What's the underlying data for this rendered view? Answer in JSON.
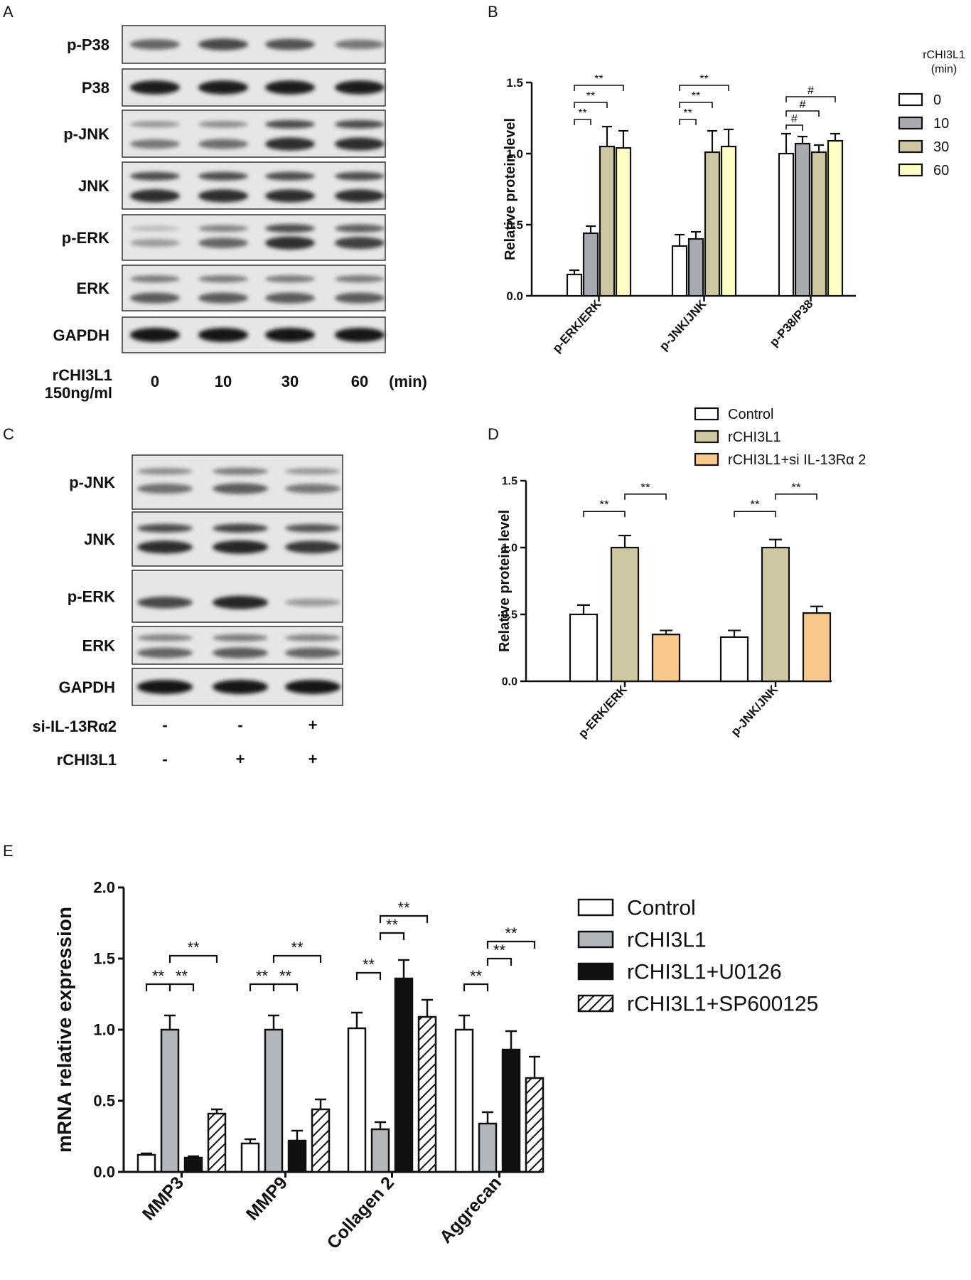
{
  "panels": {
    "a": "A",
    "b": "B",
    "c": "C",
    "d": "D",
    "e": "E"
  },
  "blot_a": {
    "rows": [
      "p-P38",
      "P38",
      "p-JNK",
      "JNK",
      "p-ERK",
      "ERK",
      "GAPDH"
    ],
    "treatment_label_1": "rCHI3L1",
    "treatment_label_2": "150ng/ml",
    "times": [
      "0",
      "10",
      "30",
      "60"
    ],
    "unit": "(min)",
    "band_levels": [
      [
        0.55,
        0.7,
        0.65,
        0.45
      ],
      [
        0.95,
        0.95,
        0.95,
        0.95
      ],
      [
        0.45,
        0.5,
        0.85,
        0.85
      ],
      [
        0.85,
        0.85,
        0.85,
        0.85
      ],
      [
        0.25,
        0.55,
        0.85,
        0.75
      ],
      [
        0.6,
        0.6,
        0.6,
        0.6
      ],
      [
        1.0,
        1.0,
        1.0,
        1.0
      ]
    ]
  },
  "blot_c": {
    "rows": [
      "p-JNK",
      "JNK",
      "p-ERK",
      "ERK",
      "GAPDH"
    ],
    "conditions": [
      {
        "label": "si-IL-13Rα2",
        "signs": [
          "-",
          "-",
          "+"
        ]
      },
      {
        "label": "rCHI3L1",
        "signs": [
          "-",
          "+",
          "+"
        ]
      }
    ],
    "band_levels": [
      [
        0.5,
        0.6,
        0.45
      ],
      [
        0.85,
        0.9,
        0.8
      ],
      [
        0.7,
        0.9,
        0.25
      ],
      [
        0.55,
        0.6,
        0.55
      ],
      [
        1.0,
        1.0,
        1.0
      ]
    ]
  },
  "chart_data": [
    {
      "panel": "B",
      "type": "bar",
      "ylabel": "Relative protein level",
      "ylim": [
        0,
        1.5
      ],
      "yticks": [
        "0.0",
        "0.5",
        "1.0",
        "1.5"
      ],
      "categories": [
        "p-ERK/ERK",
        "p-JNK/JNK",
        "p-P38/P38"
      ],
      "legend_title": "rCHI3L1\n(min)",
      "legend_title_lines": [
        "rCHI3L1",
        "(min)"
      ],
      "legend_position": "right",
      "series": [
        {
          "name": "0",
          "color": "#ffffff",
          "values": [
            0.15,
            0.35,
            1.0
          ],
          "errors": [
            0.03,
            0.08,
            0.14
          ]
        },
        {
          "name": "10",
          "color": "#a7aab1",
          "values": [
            0.44,
            0.4,
            1.07
          ],
          "errors": [
            0.05,
            0.05,
            0.05
          ]
        },
        {
          "name": "30",
          "color": "#cdc7a2",
          "values": [
            1.05,
            1.01,
            1.01
          ],
          "errors": [
            0.14,
            0.15,
            0.05
          ]
        },
        {
          "name": "60",
          "color": "#ffffc5",
          "values": [
            1.04,
            1.05,
            1.09
          ],
          "errors": [
            0.12,
            0.12,
            0.05
          ]
        }
      ],
      "annotations": [
        {
          "group": 0,
          "from": 0,
          "to": 1,
          "y": 1.24,
          "label": "**"
        },
        {
          "group": 0,
          "from": 0,
          "to": 2,
          "y": 1.36,
          "label": "**"
        },
        {
          "group": 0,
          "from": 0,
          "to": 3,
          "y": 1.48,
          "label": "**"
        },
        {
          "group": 1,
          "from": 0,
          "to": 1,
          "y": 1.24,
          "label": "**"
        },
        {
          "group": 1,
          "from": 0,
          "to": 2,
          "y": 1.36,
          "label": "**"
        },
        {
          "group": 1,
          "from": 0,
          "to": 3,
          "y": 1.48,
          "label": "**"
        },
        {
          "group": 2,
          "from": 0,
          "to": 1,
          "y": 1.2,
          "label": "#"
        },
        {
          "group": 2,
          "from": 0,
          "to": 2,
          "y": 1.3,
          "label": "#"
        },
        {
          "group": 2,
          "from": 0,
          "to": 3,
          "y": 1.4,
          "label": "#"
        }
      ]
    },
    {
      "panel": "D",
      "type": "bar",
      "ylabel": "Relative protein level",
      "ylim": [
        0,
        1.5
      ],
      "yticks": [
        "0.0",
        "0.5",
        "1.0",
        "1.5"
      ],
      "categories": [
        "p-ERK/ERK",
        "p-JNK/JNK"
      ],
      "legend_position": "top",
      "series": [
        {
          "name": "Control",
          "color": "#ffffff",
          "values": [
            0.5,
            0.33
          ],
          "errors": [
            0.07,
            0.05
          ]
        },
        {
          "name": "rCHI3L1",
          "color": "#cdc7a2",
          "values": [
            1.0,
            1.0
          ],
          "errors": [
            0.09,
            0.06
          ]
        },
        {
          "name": "rCHI3L1+si IL-13Rα 2",
          "color": "#f9c98b",
          "values": [
            0.35,
            0.51
          ],
          "errors": [
            0.03,
            0.05
          ]
        }
      ],
      "annotations": [
        {
          "group": 0,
          "from": 0,
          "to": 1,
          "y": 1.27,
          "label": "**"
        },
        {
          "group": 0,
          "from": 1,
          "to": 2,
          "y": 1.4,
          "label": "**"
        },
        {
          "group": 1,
          "from": 0,
          "to": 1,
          "y": 1.27,
          "label": "**"
        },
        {
          "group": 1,
          "from": 1,
          "to": 2,
          "y": 1.4,
          "label": "**"
        }
      ]
    },
    {
      "panel": "E",
      "type": "bar",
      "ylabel": "mRNA relative expression",
      "ylim": [
        0,
        2.0
      ],
      "yticks": [
        "0.0",
        "0.5",
        "1.0",
        "1.5",
        "2.0"
      ],
      "categories": [
        "MMP3",
        "MMP9",
        "Collagen 2",
        "Aggrecan"
      ],
      "legend_position": "right",
      "series": [
        {
          "name": "Control",
          "color": "#ffffff",
          "pattern": "none",
          "values": [
            0.12,
            0.2,
            1.01,
            1.0
          ],
          "errors": [
            0.01,
            0.03,
            0.11,
            0.1
          ]
        },
        {
          "name": "rCHI3L1",
          "color": "#b3b6bb",
          "pattern": "none",
          "values": [
            1.0,
            1.0,
            0.3,
            0.34
          ],
          "errors": [
            0.1,
            0.1,
            0.05,
            0.08
          ]
        },
        {
          "name": "rCHI3L1+U0126",
          "color": "#111111",
          "pattern": "none",
          "values": [
            0.1,
            0.22,
            1.36,
            0.86
          ],
          "errors": [
            0.01,
            0.07,
            0.13,
            0.13
          ]
        },
        {
          "name": "rCHI3L1+SP600125",
          "color": "#ffffff",
          "pattern": "hatch",
          "values": [
            0.41,
            0.44,
            1.09,
            0.66
          ],
          "errors": [
            0.03,
            0.07,
            0.12,
            0.15
          ]
        }
      ],
      "annotations": [
        {
          "group": 0,
          "from": 0,
          "to": 1,
          "y": 1.32,
          "label": "**"
        },
        {
          "group": 0,
          "from": 1,
          "to": 2,
          "y": 1.32,
          "label": "**"
        },
        {
          "group": 0,
          "from": 1,
          "to": 3,
          "y": 1.52,
          "label": "**"
        },
        {
          "group": 1,
          "from": 0,
          "to": 1,
          "y": 1.32,
          "label": "**"
        },
        {
          "group": 1,
          "from": 1,
          "to": 2,
          "y": 1.32,
          "label": "**"
        },
        {
          "group": 1,
          "from": 1,
          "to": 3,
          "y": 1.52,
          "label": "**"
        },
        {
          "group": 2,
          "from": 0,
          "to": 1,
          "y": 1.4,
          "label": "**"
        },
        {
          "group": 2,
          "from": 1,
          "to": 2,
          "y": 1.68,
          "label": "**"
        },
        {
          "group": 2,
          "from": 1,
          "to": 3,
          "y": 1.8,
          "label": "**"
        },
        {
          "group": 3,
          "from": 0,
          "to": 1,
          "y": 1.32,
          "label": "**"
        },
        {
          "group": 3,
          "from": 1,
          "to": 2,
          "y": 1.5,
          "label": "**"
        },
        {
          "group": 3,
          "from": 1,
          "to": 3,
          "y": 1.62,
          "label": "**"
        }
      ]
    }
  ]
}
